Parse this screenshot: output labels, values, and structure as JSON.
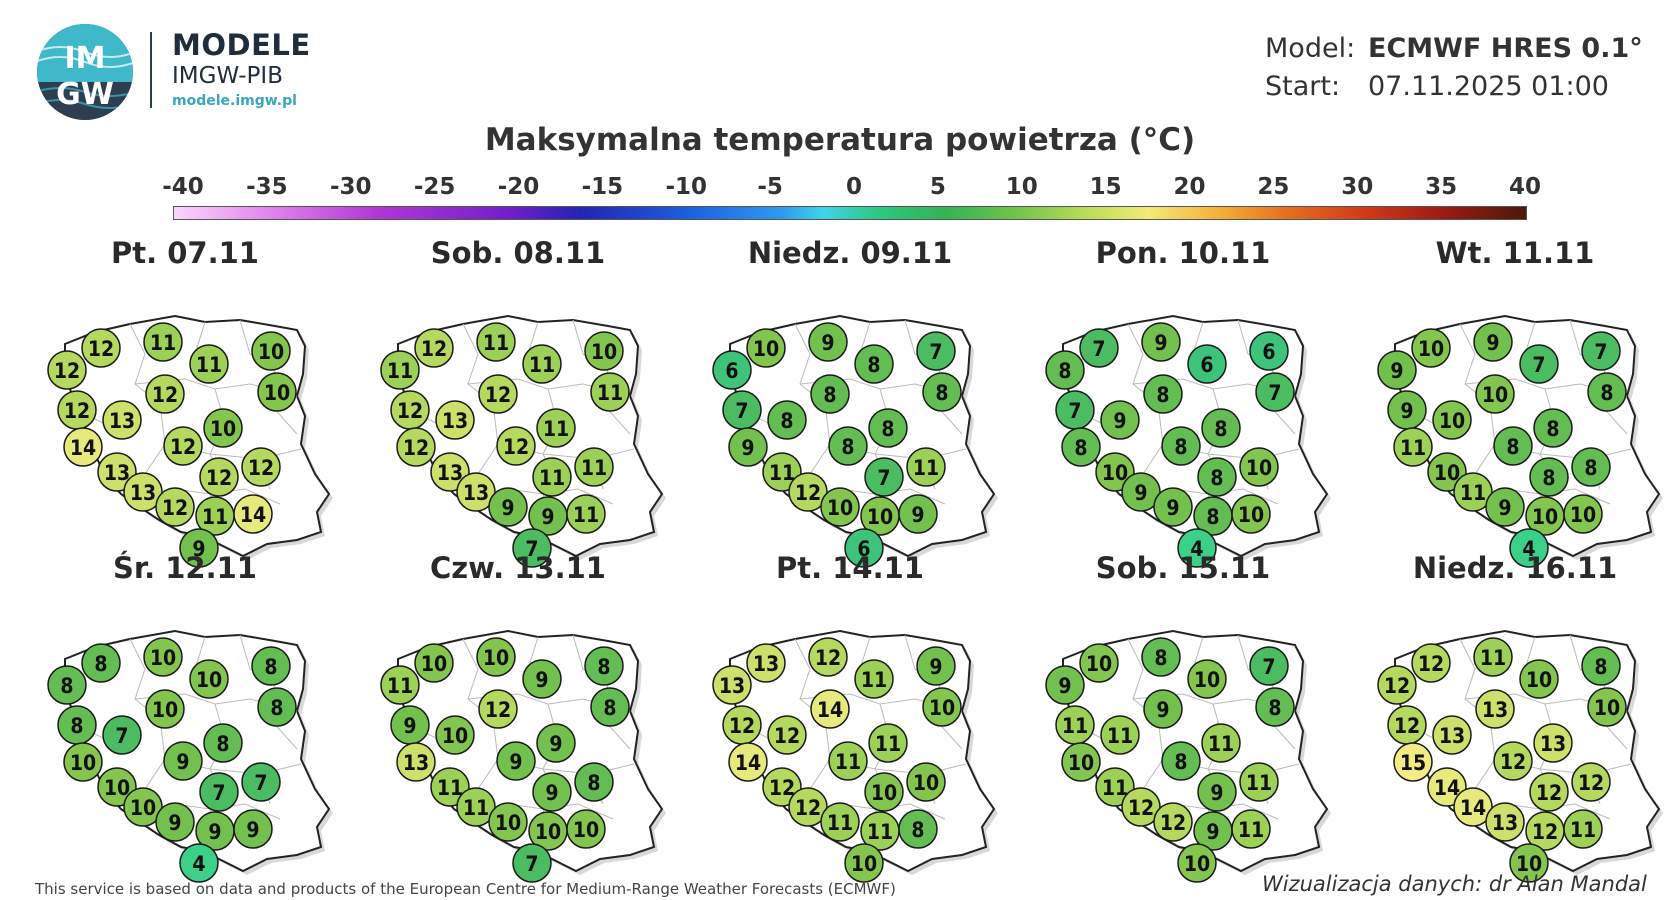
{
  "brand": {
    "logo_text_top": "IM",
    "logo_text_bottom": "GW",
    "title": "MODELE",
    "subtitle": "IMGW-PIB",
    "url": "modele.imgw.pl"
  },
  "model_info": {
    "model_label": "Model:",
    "model_value": "ECMWF HRES 0.1°",
    "start_label": "Start:",
    "start_value": "07.11.2025 01:00"
  },
  "title": "Maksymalna temperatura powietrza (°C)",
  "legend": {
    "ticks": [
      "-40",
      "-35",
      "-30",
      "-25",
      "-20",
      "-15",
      "-10",
      "-5",
      "0",
      "5",
      "10",
      "15",
      "20",
      "25",
      "30",
      "35",
      "40"
    ],
    "min": -40,
    "max": 40
  },
  "colors": {
    "t4": "#3ccf88",
    "t6": "#3ec37a",
    "t7": "#4cbc62",
    "t8": "#63bd53",
    "t9": "#74c04e",
    "t10": "#84c54f",
    "t11": "#9cd057",
    "t12": "#b5d85f",
    "t13": "#cde06b",
    "t14": "#e6e97b",
    "t15": "#f3ec86",
    "map_outline": "#222222",
    "region_lines": "#bbbbbb"
  },
  "panels": [
    {
      "date": "Pt. 07.11",
      "values": [
        12,
        12,
        11,
        11,
        10,
        10,
        12,
        13,
        12,
        14,
        12,
        10,
        13,
        12,
        12,
        13,
        12,
        11,
        14,
        9
      ]
    },
    {
      "date": "Sob. 08.11",
      "values": [
        11,
        12,
        11,
        11,
        10,
        11,
        12,
        13,
        12,
        12,
        12,
        11,
        13,
        11,
        11,
        13,
        9,
        9,
        11,
        7
      ]
    },
    {
      "date": "Niedz. 09.11",
      "values": [
        6,
        10,
        9,
        8,
        7,
        8,
        7,
        8,
        8,
        9,
        8,
        8,
        11,
        7,
        11,
        12,
        10,
        10,
        9,
        6
      ]
    },
    {
      "date": "Pon. 10.11",
      "values": [
        8,
        7,
        9,
        6,
        6,
        7,
        7,
        9,
        8,
        8,
        8,
        8,
        10,
        8,
        10,
        9,
        9,
        8,
        10,
        4
      ]
    },
    {
      "date": "Wt. 11.11",
      "values": [
        9,
        10,
        9,
        7,
        7,
        8,
        9,
        10,
        10,
        11,
        8,
        8,
        10,
        8,
        8,
        11,
        9,
        10,
        10,
        4
      ]
    },
    {
      "date": "Śr. 12.11",
      "values": [
        8,
        8,
        10,
        10,
        8,
        8,
        8,
        7,
        10,
        10,
        9,
        8,
        10,
        7,
        7,
        10,
        9,
        9,
        9,
        4
      ]
    },
    {
      "date": "Czw. 13.11",
      "values": [
        11,
        10,
        10,
        9,
        8,
        8,
        9,
        10,
        12,
        13,
        9,
        9,
        11,
        9,
        8,
        11,
        10,
        10,
        10,
        7
      ]
    },
    {
      "date": "Pt. 14.11",
      "values": [
        13,
        13,
        12,
        11,
        9,
        10,
        12,
        12,
        14,
        14,
        11,
        11,
        12,
        10,
        10,
        12,
        11,
        11,
        8,
        10
      ]
    },
    {
      "date": "Sob. 15.11",
      "values": [
        9,
        10,
        8,
        10,
        7,
        8,
        11,
        11,
        9,
        10,
        8,
        11,
        11,
        9,
        11,
        12,
        12,
        9,
        11,
        10
      ]
    },
    {
      "date": "Niedz. 16.11",
      "values": [
        12,
        12,
        11,
        10,
        8,
        10,
        12,
        13,
        13,
        15,
        12,
        13,
        14,
        12,
        12,
        14,
        13,
        12,
        11,
        10
      ]
    }
  ],
  "footer": {
    "source": "This service is based on data and products of the European Centre for Medium-Range Weather Forecasts (ECMWF)",
    "credit": "Wizualizacja danych: dr Alan Mandal"
  }
}
